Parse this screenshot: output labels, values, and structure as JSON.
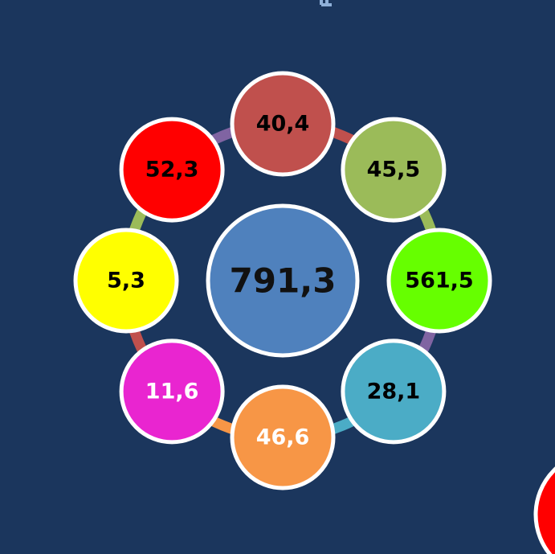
{
  "center": {
    "label": "791,3",
    "fill": "#4f81bd",
    "text_color": "#111111"
  },
  "nodes": [
    {
      "label": "40,4",
      "fill": "#c0504d",
      "text_color": "#000000"
    },
    {
      "label": "45,5",
      "fill": "#9bbb59",
      "text_color": "#000000"
    },
    {
      "label": "561,5",
      "fill": "#66ff00",
      "text_color": "#000000"
    },
    {
      "label": "28,1",
      "fill": "#4bacc6",
      "text_color": "#000000"
    },
    {
      "label": "46,6",
      "fill": "#f79646",
      "text_color": "#ffffff"
    },
    {
      "label": "11,6",
      "fill": "#e925d0",
      "text_color": "#ffffff"
    },
    {
      "label": "5,3",
      "fill": "#ffff00",
      "text_color": "#000000"
    },
    {
      "label": "52,3",
      "fill": "#ff0000",
      "text_color": "#000000"
    }
  ],
  "arcs": [
    {
      "from": 0,
      "to": 1,
      "color": "#c0504d"
    },
    {
      "from": 1,
      "to": 2,
      "color": "#9bbb59"
    },
    {
      "from": 2,
      "to": 3,
      "color": "#8064a2"
    },
    {
      "from": 3,
      "to": 4,
      "color": "#4bacc6"
    },
    {
      "from": 4,
      "to": 5,
      "color": "#f79646"
    },
    {
      "from": 5,
      "to": 6,
      "color": "#c0504d"
    },
    {
      "from": 6,
      "to": 7,
      "color": "#9bbb59"
    },
    {
      "from": 7,
      "to": 0,
      "color": "#8064a2"
    }
  ],
  "colors": {
    "background": "#1b365d",
    "border": "#ffffff",
    "partial_circle": "#ff0000"
  }
}
